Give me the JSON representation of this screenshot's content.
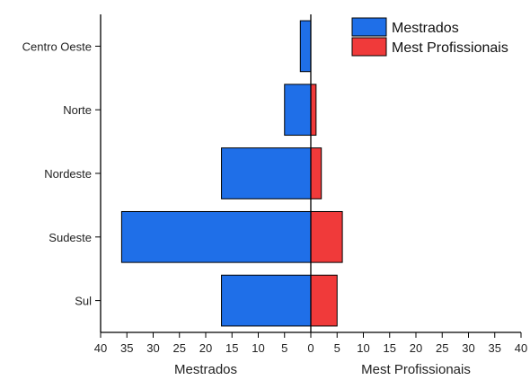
{
  "chart_data": {
    "type": "bar",
    "orientation": "horizontal",
    "layout": "diverging",
    "categories": [
      "Centro Oeste",
      "Norte",
      "Nordeste",
      "Sudeste",
      "Sul"
    ],
    "series": [
      {
        "name": "Mestrados",
        "values": [
          2,
          5,
          17,
          36,
          17
        ],
        "color": "#1f6fe8",
        "side": "left"
      },
      {
        "name": "Mest Profissionais",
        "values": [
          0,
          1,
          2,
          6,
          5
        ],
        "color": "#f03a3a",
        "side": "right"
      }
    ],
    "xlabel_left": "Mestrados",
    "xlabel_right": "Mest Profissionais",
    "xlim": [
      -40,
      40
    ],
    "tick_labels": [
      "40",
      "35",
      "30",
      "25",
      "20",
      "15",
      "10",
      "5",
      "0",
      "5",
      "10",
      "15",
      "20",
      "25",
      "30",
      "35",
      "40"
    ],
    "grid": false,
    "legend_position": "top-right"
  }
}
